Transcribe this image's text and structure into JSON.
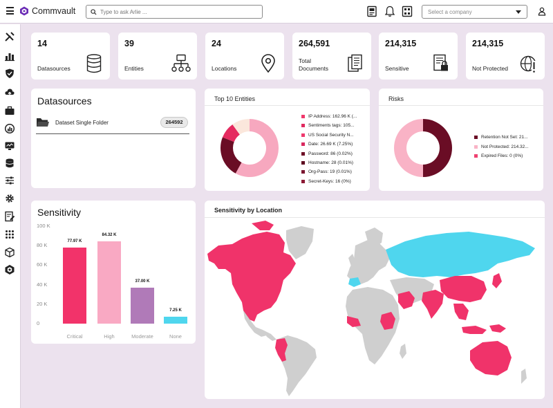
{
  "header": {
    "brand": "Commvault",
    "search_placeholder": "Type to ask Arlie ...",
    "company_placeholder": "Select a company"
  },
  "stats": [
    {
      "value": "14",
      "label": "Datasources",
      "icon": "database-icon"
    },
    {
      "value": "39",
      "label": "Entities",
      "icon": "hierarchy-icon"
    },
    {
      "value": "24",
      "label": "Locations",
      "icon": "location-pin-icon"
    },
    {
      "value": "264,591",
      "label": "Total\nDocuments",
      "icon": "documents-icon"
    },
    {
      "value": "214,315",
      "label": "Sensitive",
      "icon": "locked-document-icon"
    },
    {
      "value": "214,315",
      "label": "Not Protected",
      "icon": "globe-warning-icon"
    }
  ],
  "datasources": {
    "title": "Datasources",
    "item_label": "Dataset Single Folder",
    "item_count": "264592"
  },
  "entities": {
    "title": "Top  10 Entities",
    "legend": [
      {
        "label": "IP Address: 162.96 K (...",
        "color": "#f0386b"
      },
      {
        "label": "Sentiments tags: 105...",
        "color": "#e02a60"
      },
      {
        "label": "US Social Security N...",
        "color": "#ee3a6e"
      },
      {
        "label": "Date: 26.69 K (7.25%)",
        "color": "#d9285f"
      },
      {
        "label": "Password: 86 (0.02%)",
        "color": "#6e0f26"
      },
      {
        "label": "Hostname: 28 (0.01%)",
        "color": "#5e0b20"
      },
      {
        "label": "Org-Pass: 19 (0.01%)",
        "color": "#7a1630"
      },
      {
        "label": "Secret-Keys: 16 (0%)",
        "color": "#8c1a35"
      }
    ]
  },
  "risks": {
    "title": "Risks",
    "legend": [
      {
        "label": "Retention Not Set: 21...",
        "color": "#6a0d25"
      },
      {
        "label": "Not Protected: 214.32...",
        "color": "#f9b3c6"
      },
      {
        "label": "Expired Files: 0 (0%)",
        "color": "#ef4170"
      }
    ]
  },
  "sensitivity": {
    "title": "Sensitivity",
    "y_ticks": [
      "100 K",
      "80 K",
      "60 K",
      "40 K",
      "20 K",
      "0"
    ]
  },
  "map": {
    "title": "Sensitivity by Location"
  },
  "chart_data": [
    {
      "type": "bar",
      "title": "Sensitivity",
      "categories": [
        "Critical",
        "High",
        "Moderate",
        "None"
      ],
      "values": [
        77.97,
        84.32,
        37.0,
        7.25
      ],
      "value_labels": [
        "77.97 K",
        "84.32 K",
        "37.00 K",
        "7.25 K"
      ],
      "colors": [
        "#f2336a",
        "#f9a9c3",
        "#b07ab8",
        "#4fd6ee"
      ],
      "ylim": [
        0,
        100
      ],
      "unit": "K"
    },
    {
      "type": "pie",
      "title": "Top  10 Entities",
      "donut": true,
      "slices": [
        {
          "value": 58,
          "color": "#f7a8bf"
        },
        {
          "value": 23,
          "color": "#6a0d25"
        },
        {
          "value": 9,
          "color": "#e52a5f"
        },
        {
          "value": 10,
          "color": "#fbe7dc"
        }
      ]
    },
    {
      "type": "pie",
      "title": "Risks",
      "donut": true,
      "slices": [
        {
          "value": 50,
          "color": "#6a0d25"
        },
        {
          "value": 50,
          "color": "#f9b3c6"
        },
        {
          "value": 0,
          "color": "#ef4170"
        }
      ]
    }
  ]
}
